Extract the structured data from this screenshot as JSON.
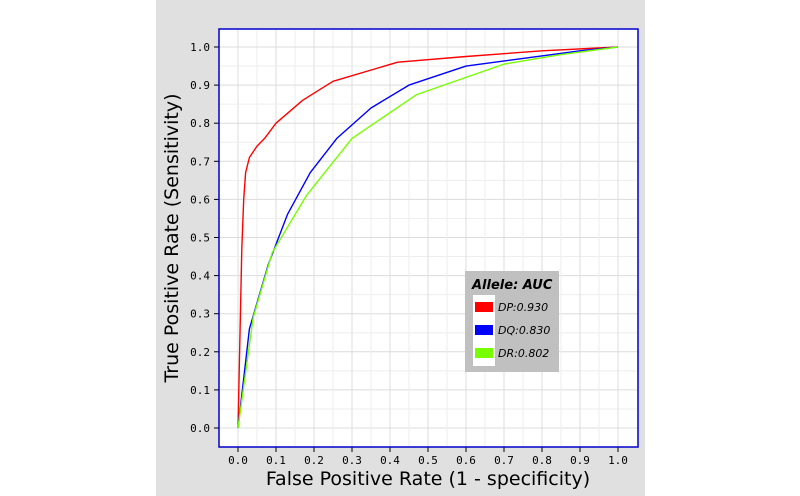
{
  "chart_data": {
    "type": "line",
    "xlabel": "False Positive Rate (1 - specificity)",
    "ylabel": "True Positive Rate (Sensitivity)",
    "xlim": [
      0,
      1
    ],
    "ylim": [
      0,
      1
    ],
    "xticks": [
      "0.0",
      "0.1",
      "0.2",
      "0.3",
      "0.4",
      "0.5",
      "0.6",
      "0.7",
      "0.8",
      "0.9",
      "1.0"
    ],
    "yticks": [
      "0.0",
      "0.1",
      "0.2",
      "0.3",
      "0.4",
      "0.5",
      "0.6",
      "0.7",
      "0.8",
      "0.9",
      "1.0"
    ],
    "grid": true,
    "legend": {
      "title": "Allele: AUC",
      "placement": "lower-right",
      "entries": [
        "DP:0.930",
        "DQ:0.830",
        "DR:0.802"
      ]
    },
    "series": [
      {
        "name": "DP",
        "color": "#ff0000",
        "x": [
          0.0,
          0.01,
          0.015,
          0.02,
          0.03,
          0.05,
          0.07,
          0.1,
          0.17,
          0.25,
          0.42,
          0.6,
          0.8,
          1.0
        ],
        "y": [
          0.0,
          0.47,
          0.6,
          0.67,
          0.71,
          0.74,
          0.76,
          0.8,
          0.86,
          0.91,
          0.96,
          0.975,
          0.99,
          1.0
        ]
      },
      {
        "name": "DQ",
        "color": "#0000ff",
        "x": [
          0.0,
          0.03,
          0.08,
          0.13,
          0.19,
          0.26,
          0.35,
          0.45,
          0.6,
          0.75,
          0.9,
          1.0
        ],
        "y": [
          0.0,
          0.26,
          0.43,
          0.56,
          0.67,
          0.76,
          0.84,
          0.9,
          0.95,
          0.97,
          0.99,
          1.0
        ]
      },
      {
        "name": "DR",
        "color": "#77ff00",
        "x": [
          0.0,
          0.04,
          0.09,
          0.18,
          0.3,
          0.47,
          0.7,
          0.85,
          1.0
        ],
        "y": [
          0.0,
          0.29,
          0.46,
          0.61,
          0.76,
          0.875,
          0.955,
          0.98,
          1.0
        ]
      }
    ]
  }
}
